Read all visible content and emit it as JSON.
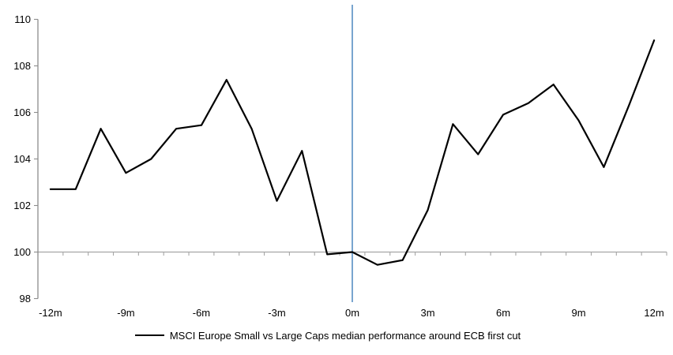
{
  "chart_data": {
    "type": "line",
    "title": "",
    "xlabel": "",
    "ylabel": "",
    "x": [
      -12,
      -11,
      -10,
      -9,
      -8,
      -7,
      -6,
      -5,
      -4,
      -3,
      -2,
      -1,
      0,
      1,
      2,
      3,
      4,
      5,
      6,
      7,
      8,
      9,
      10,
      11,
      12
    ],
    "series": [
      {
        "name": "MSCI Europe Small vs Large Caps median performance around ECB first cut",
        "values": [
          102.7,
          102.7,
          105.3,
          103.4,
          104.0,
          105.3,
          105.45,
          107.4,
          105.3,
          102.2,
          104.35,
          99.9,
          100.0,
          99.45,
          99.65,
          101.8,
          105.5,
          104.2,
          105.9,
          106.4,
          107.2,
          105.65,
          103.65,
          106.3,
          109.1
        ]
      }
    ],
    "ylim": [
      98,
      110
    ],
    "yticks": [
      98,
      100,
      102,
      104,
      106,
      108,
      110
    ],
    "xtick_positions": [
      -12,
      -9,
      -6,
      -3,
      0,
      3,
      6,
      9,
      12
    ],
    "xtick_labels": [
      "-12m",
      "-9m",
      "-6m",
      "-3m",
      "0m",
      "3m",
      "6m",
      "9m",
      "12m"
    ],
    "baseline_value": 100,
    "event_line_x": 0,
    "grid": false,
    "legend_position": "bottom",
    "colors": {
      "series": "#000000",
      "event_line": "#79A5CF",
      "baseline": "#A6A6A6",
      "axis": "#8C8C8C",
      "text": "#000000"
    }
  },
  "legend": {
    "label": "MSCI Europe Small vs Large Caps median performance around ECB first cut"
  }
}
